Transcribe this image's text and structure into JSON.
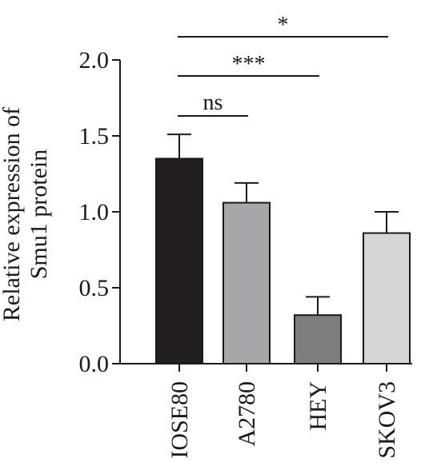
{
  "chart_data": {
    "type": "bar",
    "categories": [
      "IOSE80",
      "A2780",
      "HEY",
      "SKOV3"
    ],
    "values": [
      1.35,
      1.06,
      0.32,
      0.86
    ],
    "errors": [
      0.16,
      0.13,
      0.12,
      0.14
    ],
    "colors": [
      "#231f20",
      "#a7a6aa",
      "#7b7e7c",
      "#d6d6d6"
    ],
    "ylabel_line1": "Relative expression of",
    "ylabel_line2": "Smu1 protein",
    "ylim": [
      0,
      2.0
    ],
    "yticks": [
      "0.0",
      "0.5",
      "1.0",
      "1.5",
      "2.0"
    ],
    "significance": [
      {
        "from": "IOSE80",
        "to": "A2780",
        "label": "ns"
      },
      {
        "from": "IOSE80",
        "to": "HEY",
        "label": "***"
      },
      {
        "from": "IOSE80",
        "to": "SKOV3",
        "label": "*"
      }
    ]
  }
}
